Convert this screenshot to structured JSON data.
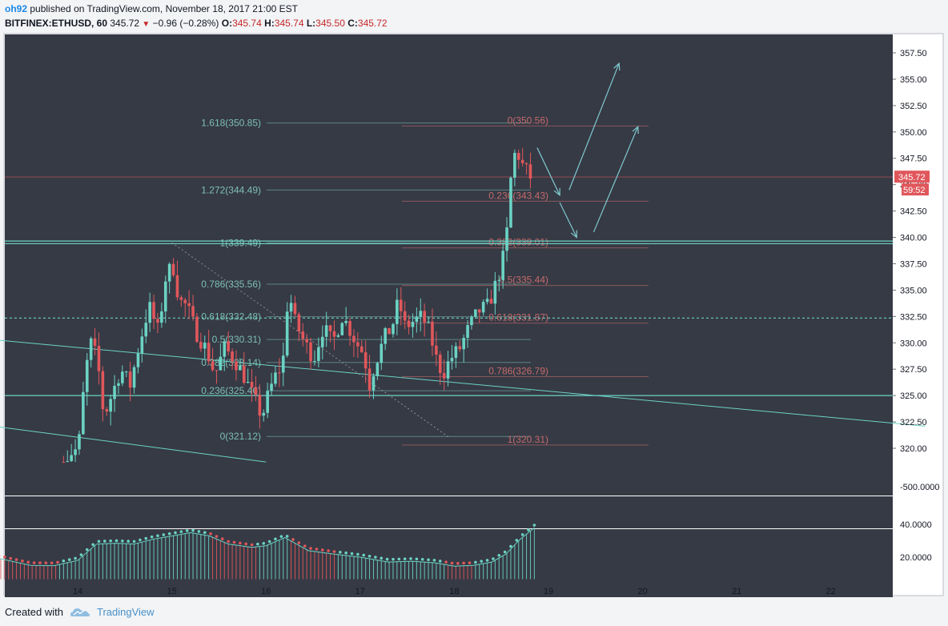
{
  "header": {
    "user": "oh92",
    "published": "published on TradingView.com, November 18, 2017 21:00 EST",
    "symbol": "BITFINEX:ETHUSD, 60",
    "last": "345.72",
    "change": "−0.96 (−0.28%)",
    "o_label": "O:",
    "o": "345.74",
    "h_label": "H:",
    "h": "345.74",
    "l_label": "L:",
    "l": "345.50",
    "c_label": "C:",
    "c": "345.72"
  },
  "footer": {
    "created_with": "Created with",
    "brand": "TradingView"
  },
  "colors": {
    "background": "#363a45",
    "up": "#6bd3c4",
    "down": "#e0575b",
    "fib_left": "#7dbfb4",
    "fib_right": "#c46a6a",
    "price_tag": "#e0575b"
  },
  "chart_data": {
    "type": "candlestick",
    "symbol": "BITFINEX:ETHUSD",
    "interval": "60",
    "x_tick_labels": [
      "14",
      "15",
      "16",
      "17",
      "18",
      "19",
      "20",
      "21",
      "22"
    ],
    "price_axis": {
      "ticks": [
        "357.50",
        "355.00",
        "352.50",
        "350.00",
        "347.50",
        "345.00",
        "342.50",
        "340.00",
        "337.50",
        "335.00",
        "332.50",
        "330.00",
        "327.50",
        "325.00",
        "322.50",
        "320.00"
      ],
      "range": [
        318.7,
        360.0
      ]
    },
    "last_price_label": "345.72",
    "countdown_label": "59:52",
    "lower_axis_label": "-500.0000",
    "indicator_axis": {
      "ticks": [
        "40.0000",
        "20.0000"
      ],
      "range": [
        6,
        47
      ]
    },
    "price_path": [
      [
        13.85,
        318.0
      ],
      [
        13.95,
        319.5
      ],
      [
        14.05,
        320.0
      ],
      [
        14.12,
        327.0
      ],
      [
        14.18,
        330.0
      ],
      [
        14.25,
        328.5
      ],
      [
        14.32,
        323.0
      ],
      [
        14.4,
        325.0
      ],
      [
        14.5,
        327.5
      ],
      [
        14.6,
        326.0
      ],
      [
        14.7,
        330.0
      ],
      [
        14.8,
        333.5
      ],
      [
        14.9,
        331.0
      ],
      [
        14.97,
        336.0
      ],
      [
        15.05,
        337.5
      ],
      [
        15.12,
        334.0
      ],
      [
        15.2,
        333.5
      ],
      [
        15.3,
        331.0
      ],
      [
        15.4,
        329.5
      ],
      [
        15.5,
        327.0
      ],
      [
        15.6,
        329.5
      ],
      [
        15.7,
        328.5
      ],
      [
        15.8,
        327.0
      ],
      [
        15.9,
        325.0
      ],
      [
        16.0,
        323.0
      ],
      [
        16.08,
        325.5
      ],
      [
        16.15,
        327.0
      ],
      [
        16.22,
        328.0
      ],
      [
        16.28,
        335.0
      ],
      [
        16.35,
        332.0
      ],
      [
        16.45,
        330.0
      ],
      [
        16.55,
        328.5
      ],
      [
        16.65,
        331.5
      ],
      [
        16.75,
        330.0
      ],
      [
        16.85,
        332.5
      ],
      [
        16.92,
        331.5
      ],
      [
        17.0,
        330.0
      ],
      [
        17.08,
        329.0
      ],
      [
        17.14,
        326.0
      ],
      [
        17.2,
        328.0
      ],
      [
        17.3,
        330.5
      ],
      [
        17.38,
        331.5
      ],
      [
        17.45,
        334.0
      ],
      [
        17.52,
        331.5
      ],
      [
        17.6,
        332.0
      ],
      [
        17.7,
        332.5
      ],
      [
        17.78,
        331.0
      ],
      [
        17.85,
        328.5
      ],
      [
        17.92,
        327.0
      ],
      [
        18.0,
        328.5
      ],
      [
        18.1,
        329.5
      ],
      [
        18.2,
        331.5
      ],
      [
        18.3,
        333.0
      ],
      [
        18.4,
        333.5
      ],
      [
        18.48,
        335.5
      ],
      [
        18.55,
        337.5
      ],
      [
        18.6,
        340.5
      ],
      [
        18.65,
        346.5
      ],
      [
        18.7,
        348.5
      ],
      [
        18.75,
        347.0
      ],
      [
        18.8,
        346.5
      ],
      [
        18.83,
        345.72
      ]
    ],
    "fib_left": {
      "anchor_high": 339.49,
      "anchor_low": 321.12,
      "levels": [
        {
          "label": "1.618(350.85)",
          "value": 350.85
        },
        {
          "label": "1.272(344.49)",
          "value": 344.49
        },
        {
          "label": "1(339.49)",
          "value": 339.49
        },
        {
          "label": "0.786(335.56)",
          "value": 335.56
        },
        {
          "label": "0.618(332.48)",
          "value": 332.48
        },
        {
          "label": "0.5(330.31)",
          "value": 330.31
        },
        {
          "label": "0.382(328.14)",
          "value": 328.14
        },
        {
          "label": "0.236(325.46)",
          "value": 325.46
        },
        {
          "label": "0(321.12)",
          "value": 321.12
        }
      ]
    },
    "fib_right": {
      "anchor_high": 350.56,
      "anchor_low": 320.31,
      "levels": [
        {
          "label": "0(350.56)",
          "value": 350.56
        },
        {
          "label": "0.236(343.43)",
          "value": 343.43
        },
        {
          "label": "0.382(339.01)",
          "value": 339.01
        },
        {
          "label": "0.5(335.44)",
          "value": 335.44
        },
        {
          "label": "0.618(331.87)",
          "value": 331.87
        },
        {
          "label": "0.786(326.79)",
          "value": 326.79
        },
        {
          "label": "1(320.31)",
          "value": 320.31
        }
      ]
    },
    "horizontal_lines": [
      {
        "value": 339.65,
        "style": "solid"
      },
      {
        "value": 339.4,
        "style": "solid"
      },
      {
        "value": 332.35,
        "style": "dashed"
      },
      {
        "value": 325.0,
        "style": "solid"
      },
      {
        "value": 345.72,
        "style": "last-price"
      }
    ],
    "trend_lines": [
      {
        "from": [
          13.1,
          330.3
        ],
        "to": [
          23.0,
          322.1
        ]
      },
      {
        "from": [
          13.1,
          322.1
        ],
        "to": [
          16.0,
          318.7
        ]
      },
      {
        "from": [
          15.0,
          339.5
        ],
        "to": [
          17.95,
          321.0
        ],
        "style": "dotted"
      }
    ],
    "projection_arrows": [
      {
        "from": [
          18.88,
          348.5
        ],
        "to": [
          19.12,
          344.0
        ]
      },
      {
        "from": [
          19.12,
          343.3
        ],
        "to": [
          19.3,
          340.0
        ]
      },
      {
        "from": [
          19.48,
          340.5
        ],
        "to": [
          19.95,
          350.5
        ]
      },
      {
        "from": [
          19.22,
          344.5
        ],
        "to": [
          19.75,
          356.5
        ]
      }
    ],
    "indicator": {
      "path": [
        [
          13.1,
          20
        ],
        [
          13.5,
          15
        ],
        [
          13.75,
          14.8
        ],
        [
          14.0,
          18
        ],
        [
          14.2,
          28
        ],
        [
          14.4,
          28.5
        ],
        [
          14.6,
          28
        ],
        [
          14.8,
          31
        ],
        [
          15.0,
          33
        ],
        [
          15.2,
          35
        ],
        [
          15.4,
          33
        ],
        [
          15.6,
          28
        ],
        [
          15.85,
          26
        ],
        [
          16.0,
          27
        ],
        [
          16.2,
          32
        ],
        [
          16.45,
          24
        ],
        [
          16.7,
          22
        ],
        [
          17.0,
          20
        ],
        [
          17.3,
          17
        ],
        [
          17.55,
          17.5
        ],
        [
          17.8,
          16.5
        ],
        [
          18.0,
          14.5
        ],
        [
          18.2,
          15
        ],
        [
          18.4,
          17
        ],
        [
          18.55,
          22
        ],
        [
          18.7,
          31
        ],
        [
          18.85,
          38
        ]
      ],
      "down_segments": [
        [
          13.1,
          13.8
        ],
        [
          15.4,
          15.9
        ],
        [
          16.25,
          16.75
        ],
        [
          17.9,
          18.2
        ]
      ]
    }
  }
}
